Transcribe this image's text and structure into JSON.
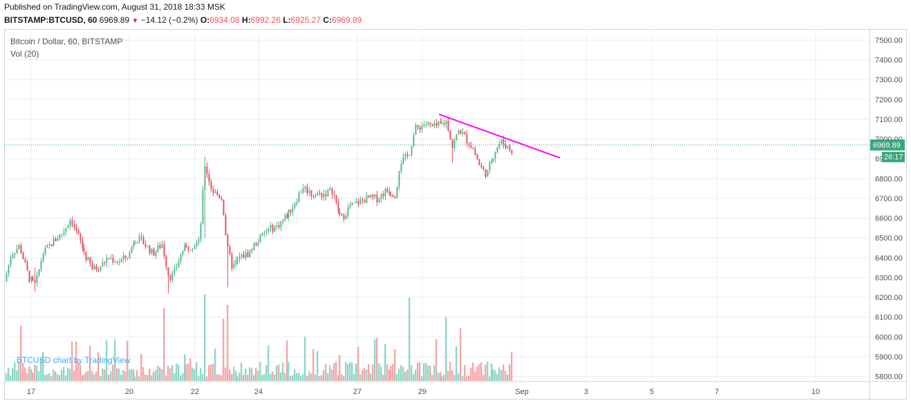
{
  "header": {
    "published_line": "Published on TradingView.com, August 31, 2018 18:33 MSK",
    "symbol": "BITSTAMP:BTCUSD, 60",
    "last": "6969.89",
    "change": "−14.12 (−0.2%)",
    "o_label": "O:",
    "o": "6934.08",
    "h_label": "H:",
    "h": "6992.26",
    "l_label": "L:",
    "l": "6925.27",
    "c_label": "C:",
    "c": "6969.89"
  },
  "legend": {
    "series": "Bitcoin / Dollar, 60, BITSTAMP",
    "volume": "Vol (20)"
  },
  "watermark": "BTCUSD chart by TradingView",
  "price_badge": "6969.89",
  "timer_badge": "26:17",
  "colors": {
    "up": "#53b987",
    "down": "#eb4d5c",
    "vol_up": "#8fd6c6",
    "vol_down": "#f4a6a6",
    "trendline": "#ff00ff",
    "grid": "#e9edf1",
    "price_line": "#1c8f78"
  },
  "chart_data": {
    "type": "candlestick",
    "title": "Bitcoin / Dollar, 60, BITSTAMP",
    "y_ticks": [
      "7500.00",
      "7400.00",
      "7300.00",
      "7200.00",
      "7100.00",
      "7000.00",
      "6900.00",
      "6800.00",
      "6700.00",
      "6600.00",
      "6500.00",
      "6400.00",
      "6300.00",
      "6200.00",
      "6100.00",
      "6000.00",
      "5900.00",
      "5800.00"
    ],
    "y_tick_values": [
      7500,
      7400,
      7300,
      7200,
      7100,
      7000,
      6900,
      6800,
      6700,
      6600,
      6500,
      6400,
      6300,
      6200,
      6100,
      6000,
      5900,
      5800
    ],
    "ylim": [
      5780,
      7520
    ],
    "x_ticks": [
      "17",
      "20",
      "22",
      "24",
      "27",
      "29",
      "Sep",
      "3",
      "5",
      "7",
      "10"
    ],
    "series_outline": [
      [
        0,
        6280
      ],
      [
        10,
        6420
      ],
      [
        22,
        6460
      ],
      [
        35,
        6300
      ],
      [
        45,
        6260
      ],
      [
        55,
        6420
      ],
      [
        70,
        6480
      ],
      [
        85,
        6530
      ],
      [
        96,
        6600
      ],
      [
        110,
        6480
      ],
      [
        118,
        6400
      ],
      [
        128,
        6340
      ],
      [
        140,
        6360
      ],
      [
        150,
        6400
      ],
      [
        165,
        6380
      ],
      [
        180,
        6410
      ],
      [
        188,
        6500
      ],
      [
        200,
        6480
      ],
      [
        215,
        6420
      ],
      [
        228,
        6470
      ],
      [
        238,
        6300
      ],
      [
        245,
        6320
      ],
      [
        258,
        6440
      ],
      [
        270,
        6460
      ],
      [
        282,
        6480
      ],
      [
        290,
        6870
      ],
      [
        300,
        6740
      ],
      [
        315,
        6700
      ],
      [
        322,
        6450
      ],
      [
        330,
        6350
      ],
      [
        340,
        6400
      ],
      [
        352,
        6420
      ],
      [
        365,
        6480
      ],
      [
        380,
        6540
      ],
      [
        395,
        6560
      ],
      [
        410,
        6620
      ],
      [
        420,
        6680
      ],
      [
        432,
        6760
      ],
      [
        445,
        6720
      ],
      [
        460,
        6720
      ],
      [
        475,
        6740
      ],
      [
        482,
        6640
      ],
      [
        488,
        6600
      ],
      [
        500,
        6660
      ],
      [
        512,
        6680
      ],
      [
        525,
        6700
      ],
      [
        540,
        6700
      ],
      [
        552,
        6740
      ],
      [
        566,
        6720
      ],
      [
        572,
        6880
      ],
      [
        585,
        6920
      ],
      [
        594,
        7050
      ],
      [
        600,
        7060
      ],
      [
        608,
        7080
      ],
      [
        620,
        7060
      ],
      [
        630,
        7070
      ],
      [
        640,
        7090
      ],
      [
        648,
        6960
      ],
      [
        658,
        7050
      ],
      [
        668,
        7000
      ],
      [
        678,
        6950
      ],
      [
        688,
        6860
      ],
      [
        698,
        6820
      ],
      [
        708,
        6930
      ],
      [
        718,
        6990
      ],
      [
        728,
        6960
      ],
      [
        737,
        6930
      ],
      [
        742,
        6970
      ]
    ],
    "trendline": {
      "x0": 635,
      "p0": 7125,
      "x1": 810,
      "p1": 6905
    },
    "last_price": 6969.89
  }
}
